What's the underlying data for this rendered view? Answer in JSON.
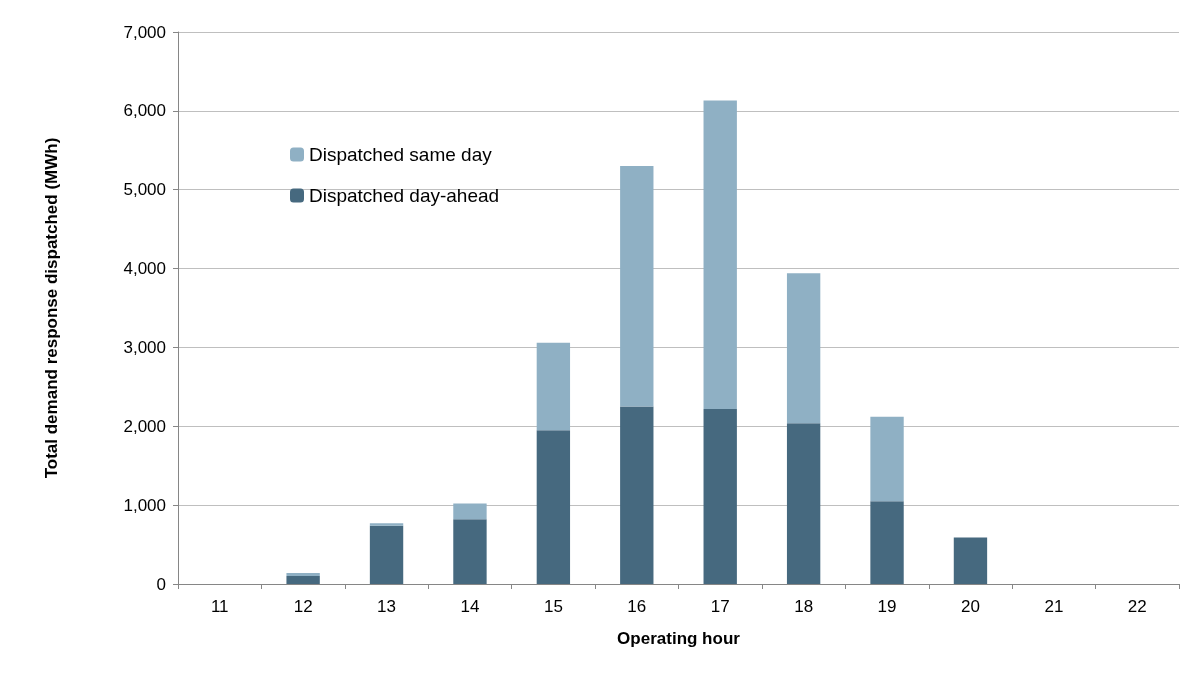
{
  "chart_data": {
    "type": "bar",
    "stacked": true,
    "xlabel": "Operating hour",
    "ylabel": "Total demand response dispatched (MWh)",
    "categories": [
      "11",
      "12",
      "13",
      "14",
      "15",
      "16",
      "17",
      "18",
      "19",
      "20",
      "21",
      "22"
    ],
    "series": [
      {
        "name": "Dispatched day-ahead",
        "color": "#46697f",
        "values": [
          0,
          100,
          740,
          820,
          1950,
          2250,
          2220,
          2040,
          1050,
          590,
          0,
          0
        ]
      },
      {
        "name": "Dispatched same day",
        "color": "#8fb0c4",
        "values": [
          0,
          40,
          30,
          200,
          1110,
          3050,
          3910,
          1900,
          1070,
          0,
          0,
          0
        ]
      }
    ],
    "ylim": [
      0,
      7000
    ],
    "yticks": [
      0,
      {
        "value": 1000,
        "label": "1,000"
      },
      {
        "value": 2000,
        "label": "2,000"
      },
      {
        "value": 3000,
        "label": "3,000"
      },
      {
        "value": 4000,
        "label": "4,000"
      },
      {
        "value": 5000,
        "label": "5,000"
      },
      {
        "value": 6000,
        "label": "6,000"
      },
      {
        "value": 7000,
        "label": "7,000"
      }
    ],
    "grid": "y",
    "legend": "top left"
  }
}
